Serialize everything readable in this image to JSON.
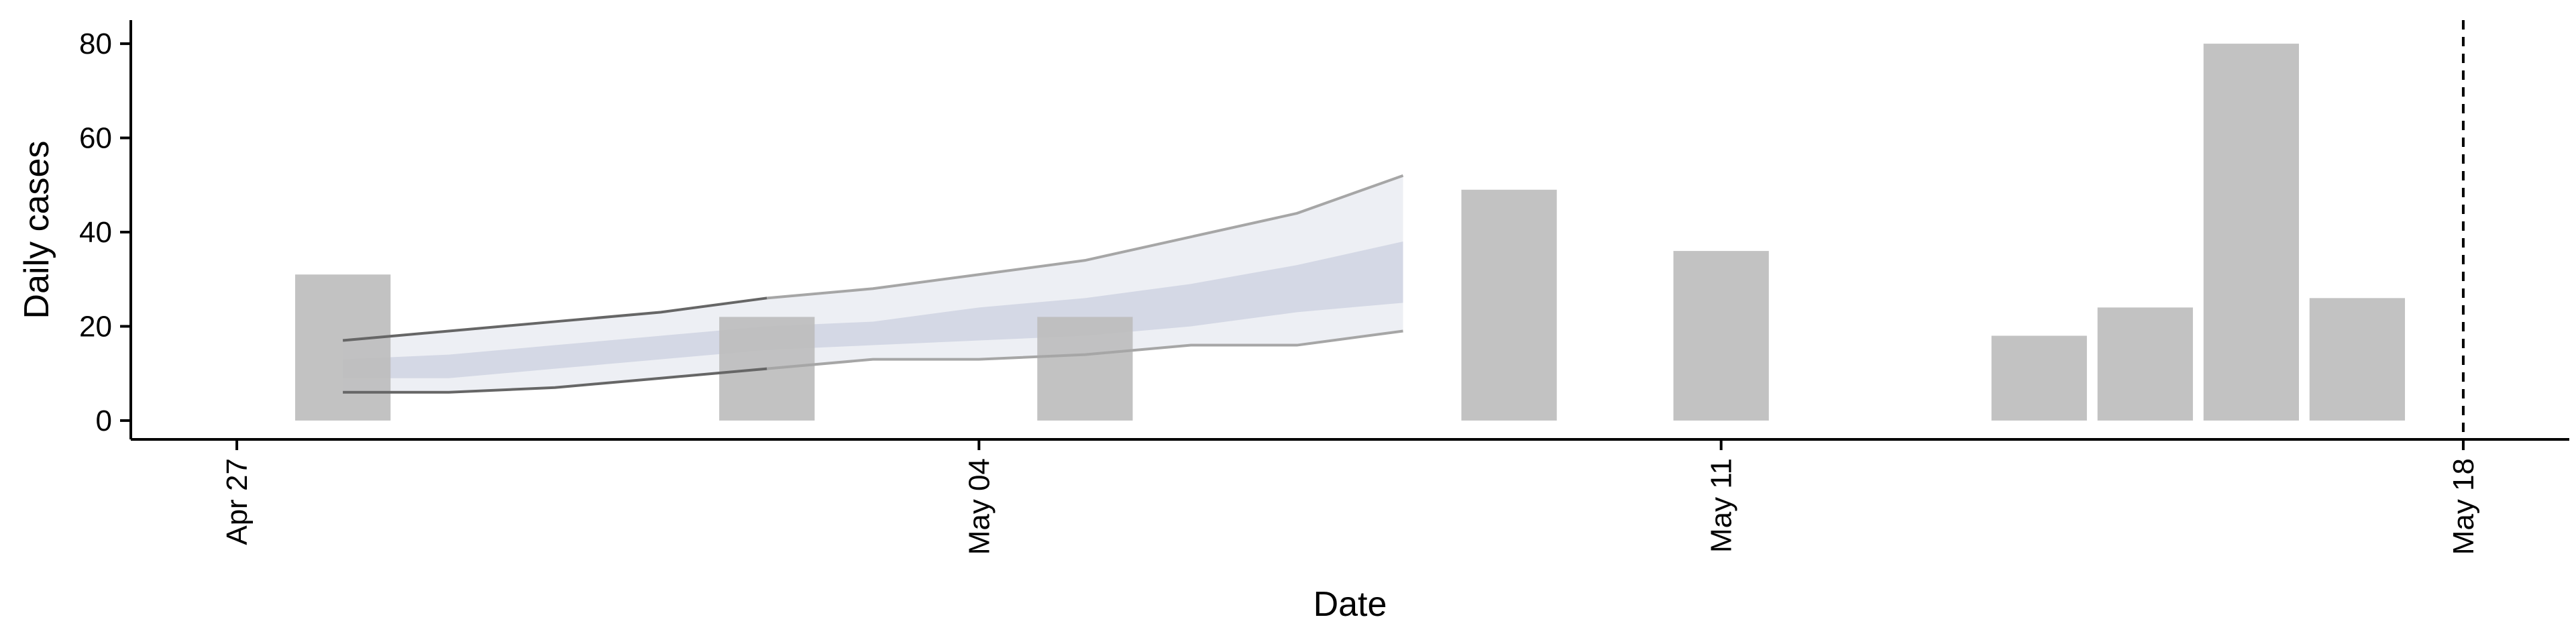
{
  "chart_data": {
    "type": "bar",
    "xlabel": "Date",
    "ylabel": "Daily cases",
    "x_ticks": [
      "Apr 27",
      "May 04",
      "May 11",
      "May 18"
    ],
    "x_tick_dates": [
      "2020-04-27",
      "2020-05-04",
      "2020-05-11",
      "2020-05-18"
    ],
    "y_ticks": [
      0,
      20,
      40,
      60,
      80
    ],
    "xlim": [
      "2020-04-26",
      "2020-05-19"
    ],
    "ylim": [
      -4,
      85
    ],
    "grid": false,
    "reference_line": {
      "date": "2020-05-18",
      "style": "dashed"
    },
    "bars": [
      {
        "date": "2020-04-28",
        "value": 31
      },
      {
        "date": "2020-05-02",
        "value": 22
      },
      {
        "date": "2020-05-05",
        "value": 22
      },
      {
        "date": "2020-05-09",
        "value": 49
      },
      {
        "date": "2020-05-11",
        "value": 36
      },
      {
        "date": "2020-05-14",
        "value": 18
      },
      {
        "date": "2020-05-15",
        "value": 24
      },
      {
        "date": "2020-05-16",
        "value": 80
      },
      {
        "date": "2020-05-17",
        "value": 26
      }
    ],
    "forecast": {
      "dates": [
        "2020-04-28",
        "2020-04-29",
        "2020-04-30",
        "2020-05-01",
        "2020-05-02",
        "2020-05-03",
        "2020-05-04",
        "2020-05-05",
        "2020-05-06",
        "2020-05-07",
        "2020-05-08"
      ],
      "lower_90": [
        6,
        6,
        7,
        9,
        11,
        13,
        13,
        14,
        16,
        16,
        19
      ],
      "lower_50": [
        9,
        9,
        11,
        13,
        15,
        16,
        17,
        18,
        20,
        23,
        25
      ],
      "upper_50": [
        13,
        14,
        16,
        18,
        20,
        21,
        24,
        26,
        29,
        33,
        38
      ],
      "upper_90": [
        17,
        19,
        21,
        23,
        26,
        28,
        31,
        34,
        39,
        44,
        52
      ]
    },
    "colors": {
      "bars": "#bdbdbd",
      "band_90": "#edeff4",
      "band_50": "#cfd3e2",
      "band_90_edge": "#a6a6a6",
      "early_edge": "#666666",
      "axis": "#000000"
    }
  }
}
